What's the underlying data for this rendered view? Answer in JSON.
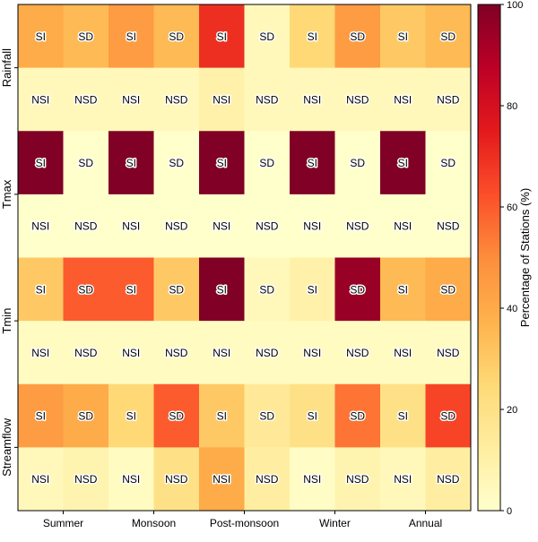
{
  "chart_data": {
    "type": "heatmap",
    "title": "",
    "x_categories": [
      "Summer",
      "Monsoon",
      "Post-monsoon",
      "Winter",
      "Annual"
    ],
    "variables": [
      "Rainfall",
      "Tmax",
      "Tmin",
      "Streamflow"
    ],
    "trend_types": {
      "increase": [
        "SI",
        "NSI"
      ],
      "decrease": [
        "SD",
        "NSD"
      ]
    },
    "row_order": [
      {
        "variable": "Rainfall",
        "significance": "S"
      },
      {
        "variable": "Rainfall",
        "significance": "NS"
      },
      {
        "variable": "Tmax",
        "significance": "S"
      },
      {
        "variable": "Tmax",
        "significance": "NS"
      },
      {
        "variable": "Tmin",
        "significance": "S"
      },
      {
        "variable": "Tmin",
        "significance": "NS"
      },
      {
        "variable": "Streamflow",
        "significance": "S"
      },
      {
        "variable": "Streamflow",
        "significance": "NS"
      }
    ],
    "cell_labels": [
      [
        "SI",
        "SD",
        "SI",
        "SD",
        "SI",
        "SD",
        "SI",
        "SD",
        "SI",
        "SD"
      ],
      [
        "NSI",
        "NSD",
        "NSI",
        "NSD",
        "NSI",
        "NSD",
        "NSI",
        "NSD",
        "NSI",
        "NSD"
      ],
      [
        "SI",
        "SD",
        "SI",
        "SD",
        "SI",
        "SD",
        "SI",
        "SD",
        "SI",
        "SD"
      ],
      [
        "NSI",
        "NSD",
        "NSI",
        "NSD",
        "NSI",
        "NSD",
        "NSI",
        "NSD",
        "NSI",
        "NSD"
      ],
      [
        "SI",
        "SD",
        "SI",
        "SD",
        "SI",
        "SD",
        "SI",
        "SD",
        "SI",
        "SD"
      ],
      [
        "NSI",
        "NSD",
        "NSI",
        "NSD",
        "NSI",
        "NSD",
        "NSI",
        "NSD",
        "NSI",
        "NSD"
      ],
      [
        "SI",
        "SD",
        "SI",
        "SD",
        "SI",
        "SD",
        "SI",
        "SD",
        "SI",
        "SD"
      ],
      [
        "NSI",
        "NSD",
        "NSI",
        "NSD",
        "NSI",
        "NSD",
        "NSI",
        "NSD",
        "NSI",
        "NSD"
      ]
    ],
    "values": [
      [
        40,
        35,
        45,
        35,
        70,
        5,
        25,
        45,
        30,
        35
      ],
      [
        5,
        5,
        5,
        5,
        10,
        5,
        5,
        5,
        5,
        5
      ],
      [
        100,
        0,
        100,
        0,
        100,
        0,
        100,
        0,
        100,
        0
      ],
      [
        0,
        0,
        0,
        0,
        0,
        0,
        0,
        0,
        0,
        0
      ],
      [
        30,
        60,
        60,
        30,
        100,
        5,
        10,
        95,
        35,
        40
      ],
      [
        3,
        3,
        3,
        3,
        3,
        3,
        3,
        3,
        3,
        3
      ],
      [
        45,
        40,
        25,
        60,
        30,
        15,
        20,
        55,
        20,
        65
      ],
      [
        5,
        8,
        3,
        20,
        40,
        12,
        2,
        8,
        5,
        12
      ]
    ],
    "colorbar": {
      "label": "Percentage of Stations (%)",
      "min": 0,
      "max": 100,
      "ticks": [
        0,
        20,
        40,
        60,
        80,
        100
      ],
      "colormap": "YlOrRd",
      "stops": [
        "#ffffcc",
        "#ffeda0",
        "#fed976",
        "#feb24c",
        "#fd8d3c",
        "#fc4e2a",
        "#e31a1c",
        "#bd0026",
        "#800026"
      ]
    },
    "xlabel": "",
    "ylabel": ""
  }
}
